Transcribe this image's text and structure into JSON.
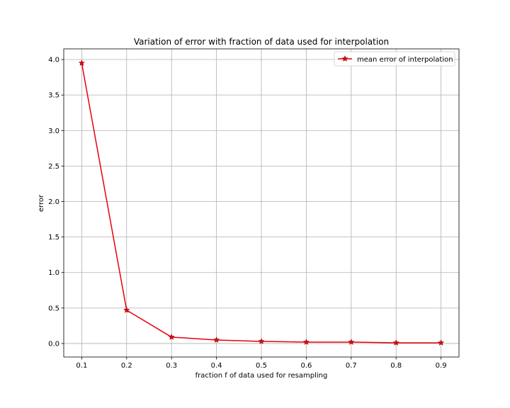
{
  "chart_data": {
    "type": "line",
    "title": "Variation of error with fraction of data used for interpolation",
    "xlabel": "fraction f of data used for resampling",
    "ylabel": "error",
    "xlim": [
      0.06,
      0.94
    ],
    "ylim": [
      -0.19,
      4.15
    ],
    "xticks": [
      0.1,
      0.2,
      0.3,
      0.4,
      0.5,
      0.6,
      0.7,
      0.8,
      0.9
    ],
    "xtick_labels": [
      "0.1",
      "0.2",
      "0.3",
      "0.4",
      "0.5",
      "0.6",
      "0.7",
      "0.8",
      "0.9"
    ],
    "yticks": [
      0.0,
      0.5,
      1.0,
      1.5,
      2.0,
      2.5,
      3.0,
      3.5,
      4.0
    ],
    "ytick_labels": [
      "0.0",
      "0.5",
      "1.0",
      "1.5",
      "2.0",
      "2.5",
      "3.0",
      "3.5",
      "4.0"
    ],
    "grid": true,
    "legend_position": "top-right",
    "series": [
      {
        "name": "mean error of interpolation",
        "color": "#e8000b",
        "marker": "star",
        "x": [
          0.1,
          0.2,
          0.3,
          0.4,
          0.5,
          0.6,
          0.7,
          0.8,
          0.9
        ],
        "y": [
          3.95,
          0.47,
          0.09,
          0.05,
          0.03,
          0.02,
          0.02,
          0.01,
          0.01
        ]
      }
    ]
  }
}
